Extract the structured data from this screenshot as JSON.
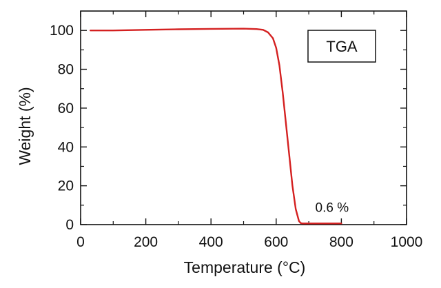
{
  "chart_data": {
    "type": "line",
    "xlabel": "Temperature (°C)",
    "ylabel": "Weight (%)",
    "xlim": [
      0,
      1000
    ],
    "ylim": [
      0,
      110
    ],
    "xticks": [
      0,
      200,
      400,
      600,
      800,
      1000
    ],
    "yticks": [
      0,
      20,
      40,
      60,
      80,
      100
    ],
    "grid": false,
    "legend_box_text": "TGA",
    "annotation": {
      "text": "0.6 %",
      "x": 720,
      "y": 6.5
    },
    "series": [
      {
        "color": "#d42020",
        "x": [
          30,
          100,
          200,
          300,
          400,
          500,
          540,
          560,
          575,
          590,
          600,
          610,
          620,
          630,
          640,
          650,
          660,
          670,
          675,
          680,
          690,
          700,
          750,
          800
        ],
        "y": [
          100.0,
          100.0,
          100.3,
          100.6,
          100.8,
          100.9,
          100.7,
          100.3,
          99.0,
          96.0,
          91.0,
          82.0,
          68.0,
          52.0,
          36.0,
          20.0,
          8.0,
          1.8,
          0.8,
          0.6,
          0.6,
          0.6,
          0.6,
          0.6
        ]
      }
    ]
  }
}
